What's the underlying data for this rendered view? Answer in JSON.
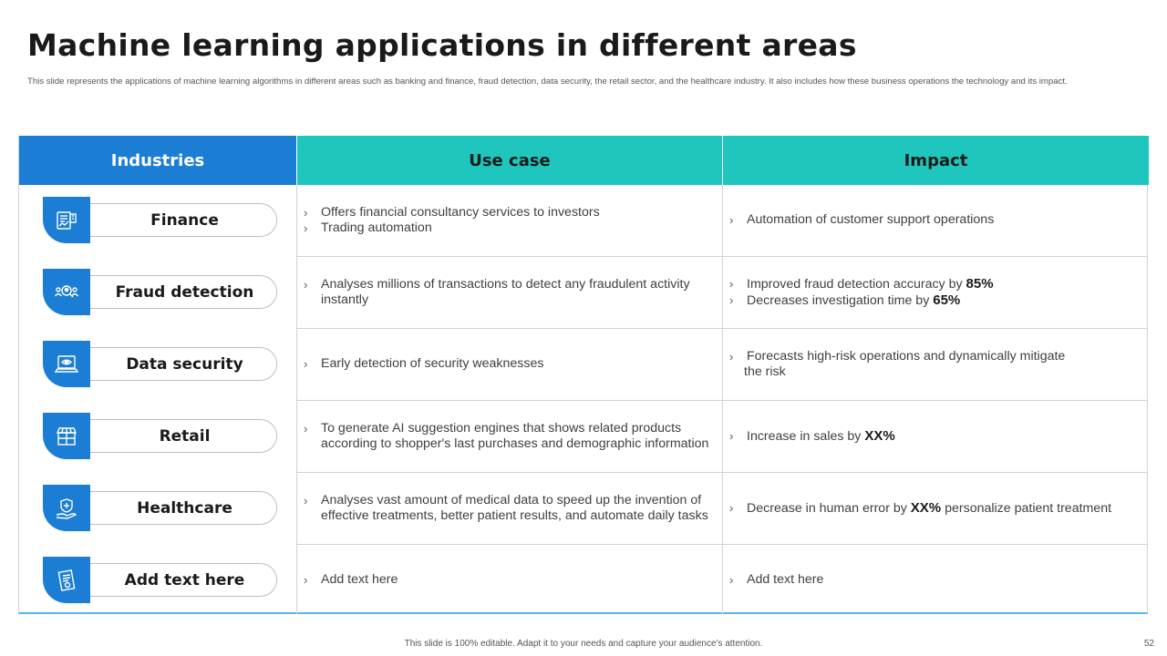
{
  "title": "Machine learning applications in different areas",
  "subtitle": "This slide represents the applications of machine learning algorithms in different areas such as banking and finance, fraud detection, data security, the retail sector, and the healthcare industry. It also includes how these business operations the technology and its impact.",
  "headers": {
    "industries": "Industries",
    "use_case": "Use case",
    "impact": "Impact"
  },
  "bullet_glyph": "›",
  "rows": [
    {
      "industry": "Finance",
      "icon": "finance-icon",
      "use_case": [
        "Offers financial consultancy services to investors",
        "Trading automation"
      ],
      "impact": [
        {
          "text": "Automation of customer support operations",
          "bold": "",
          "after": ""
        }
      ]
    },
    {
      "industry": "Fraud detection",
      "icon": "fraud-detection-icon",
      "use_case": [
        "Analyses millions of transactions to detect any fraudulent activity instantly"
      ],
      "impact": [
        {
          "text": "Improved fraud detection accuracy by ",
          "bold": "85%",
          "after": ""
        },
        {
          "text": "Decreases investigation time by ",
          "bold": "65%",
          "after": ""
        }
      ]
    },
    {
      "industry": "Data security",
      "icon": "laptop-security-icon",
      "use_case": [
        "Early detection of security weaknesses"
      ],
      "impact_line1": "Forecasts high-risk operations and dynamically mitigate",
      "impact_line2": "the risk"
    },
    {
      "industry": "Retail",
      "icon": "store-icon",
      "use_case": [
        "To generate AI suggestion engines that shows related products according to shopper's last purchases and demographic information"
      ],
      "impact": [
        {
          "text": "Increase in sales by ",
          "bold": "XX%",
          "after": ""
        }
      ]
    },
    {
      "industry": "Healthcare",
      "icon": "healthcare-hand-icon",
      "use_case": [
        "Analyses vast amount of medical data to speed up the invention of effective treatments, better patient results, and automate daily tasks"
      ],
      "impact": [
        {
          "text": "Decrease in human error by ",
          "bold": "XX%",
          "after": " personalize patient treatment"
        }
      ]
    },
    {
      "industry": "Add text here",
      "icon": "document-icon",
      "use_case": [
        "Add text here"
      ],
      "impact": [
        {
          "text": "Add text here",
          "bold": "",
          "after": ""
        }
      ]
    }
  ],
  "footer": "This slide is 100% editable. Adapt it to your needs and capture your audience's attention.",
  "page_number": "52",
  "colors": {
    "header_blue": "#1b7ed4",
    "header_teal": "#1ec6bd",
    "icon_blue": "#1b7ed4"
  }
}
